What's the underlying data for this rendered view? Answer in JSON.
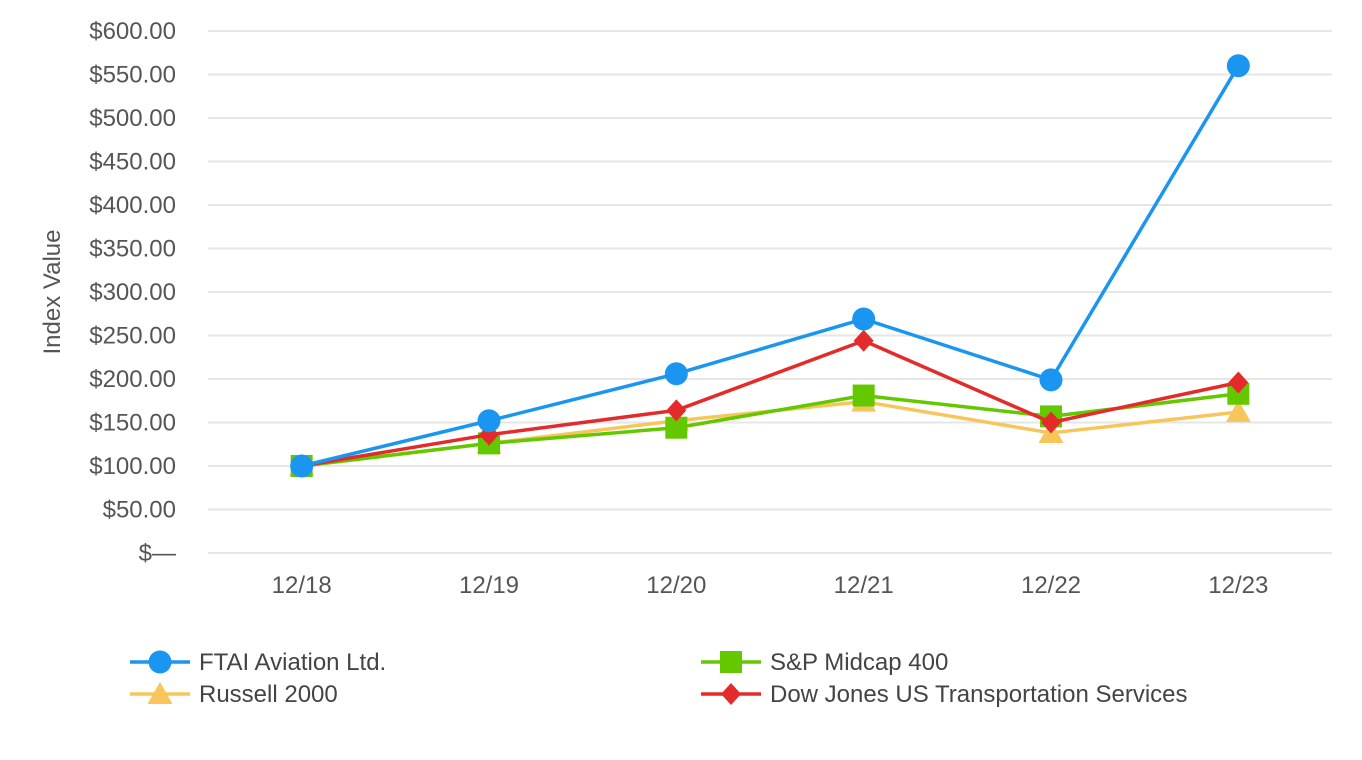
{
  "chart_data": {
    "type": "line",
    "title": "",
    "xlabel": "",
    "ylabel": "Index Value",
    "ylim": [
      0,
      600
    ],
    "yticks": [
      {
        "value": 0,
        "label": "$—"
      },
      {
        "value": 50,
        "label": "$50.00"
      },
      {
        "value": 100,
        "label": "$100.00"
      },
      {
        "value": 150,
        "label": "$150.00"
      },
      {
        "value": 200,
        "label": "$200.00"
      },
      {
        "value": 250,
        "label": "$250.00"
      },
      {
        "value": 300,
        "label": "$300.00"
      },
      {
        "value": 350,
        "label": "$350.00"
      },
      {
        "value": 400,
        "label": "$400.00"
      },
      {
        "value": 450,
        "label": "$450.00"
      },
      {
        "value": 500,
        "label": "$500.00"
      },
      {
        "value": 550,
        "label": "$550.00"
      },
      {
        "value": 600,
        "label": "$600.00"
      }
    ],
    "categories": [
      "12/18",
      "12/19",
      "12/20",
      "12/21",
      "12/22",
      "12/23"
    ],
    "grid": true,
    "legend_position": "bottom",
    "series": [
      {
        "name": "FTAI Aviation Ltd.",
        "color": "#1a96f0",
        "marker": "circle",
        "values": [
          100,
          152,
          206,
          269,
          199,
          560
        ]
      },
      {
        "name": "S&P Midcap 400",
        "color": "#64c800",
        "marker": "square",
        "values": [
          100,
          126,
          144,
          181,
          157,
          183
        ]
      },
      {
        "name": "Russell 2000",
        "color": "#f8c55a",
        "marker": "triangle",
        "values": [
          100,
          126,
          152,
          174,
          138,
          162
        ]
      },
      {
        "name": "Dow Jones US Transportation Services",
        "color": "#e42b2b",
        "marker": "diamond",
        "values": [
          100,
          136,
          164,
          244,
          150,
          196
        ]
      }
    ],
    "draw_order": [
      2,
      1,
      3,
      0
    ]
  }
}
